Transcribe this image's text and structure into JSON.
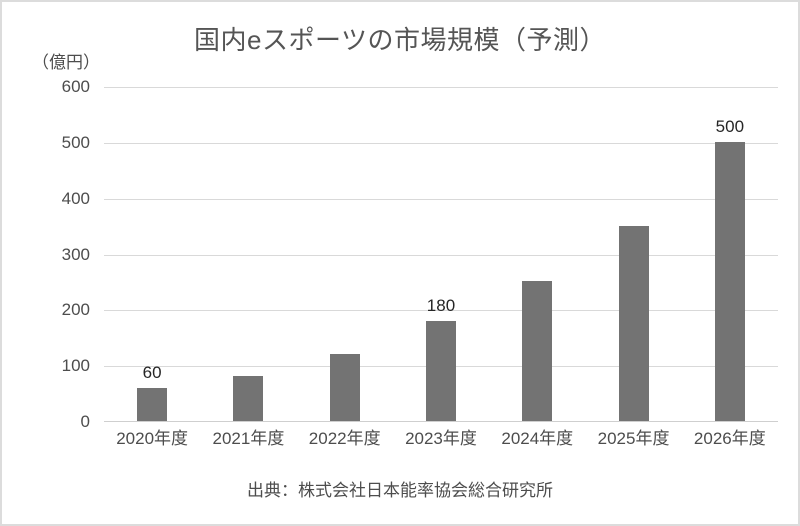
{
  "chart": {
    "title": "国内eスポーツの市場規模（予測）",
    "y_unit": "（億円）",
    "source": "出典：株式会社日本能率協会総合研究所"
  },
  "chart_data": {
    "type": "bar",
    "title": "国内eスポーツの市場規模（予測）",
    "categories": [
      "2020年度",
      "2021年度",
      "2022年度",
      "2023年度",
      "2024年度",
      "2025年度",
      "2026年度"
    ],
    "values": [
      60,
      80,
      120,
      180,
      250,
      350,
      500
    ],
    "data_labels": [
      "60",
      null,
      null,
      "180",
      null,
      null,
      "500"
    ],
    "xlabel": "",
    "ylabel": "（億円）",
    "y_ticks": [
      0,
      100,
      200,
      300,
      400,
      500,
      600
    ],
    "ylim": [
      0,
      600
    ],
    "grid": true,
    "legend": false,
    "bar_color": "#737373",
    "gridline_color": "#d9d9d9",
    "source": "出典：株式会社日本能率協会総合研究所"
  }
}
